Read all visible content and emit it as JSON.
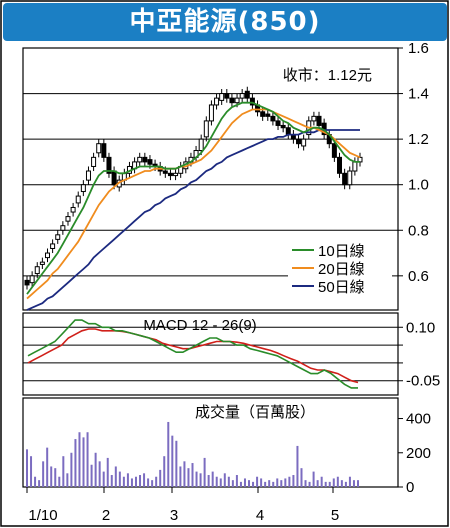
{
  "title": "中亞能源(850)",
  "price_label": "收市：1.12元",
  "colors": {
    "title_bg": "#1b7fc4",
    "up": "#ffffff",
    "down": "#000000",
    "ma10": "#2a8c2a",
    "ma20": "#f08c1e",
    "ma50": "#1c2a80",
    "macd": "#2a8c2a",
    "signal": "#d0201a",
    "volume": "#7b6cc0"
  },
  "x_labels": [
    "1/10",
    "2",
    "3",
    "4",
    "5"
  ],
  "chart_data": [
    {
      "type": "candlestick",
      "title": "",
      "ylim": [
        0.45,
        1.6
      ],
      "y_ticks": [
        "1.6",
        "1.4",
        "1.2",
        "1.0",
        "0.8",
        "0.6"
      ],
      "y_tick_values": [
        1.6,
        1.4,
        1.2,
        1.0,
        0.8,
        0.6
      ],
      "legend": {
        "position": "bottom-right",
        "entries": [
          "10日線",
          "20日線",
          "50日線"
        ]
      },
      "close": [
        0.56,
        0.6,
        0.64,
        0.66,
        0.7,
        0.74,
        0.78,
        0.82,
        0.86,
        0.9,
        0.95,
        1.0,
        1.06,
        1.12,
        1.18,
        1.12,
        1.05,
        1.0,
        1.02,
        1.05,
        1.08,
        1.1,
        1.12,
        1.1,
        1.09,
        1.08,
        1.06,
        1.05,
        1.04,
        1.05,
        1.08,
        1.1,
        1.12,
        1.15,
        1.2,
        1.28,
        1.35,
        1.38,
        1.4,
        1.38,
        1.36,
        1.38,
        1.4,
        1.38,
        1.35,
        1.32,
        1.3,
        1.3,
        1.28,
        1.26,
        1.25,
        1.22,
        1.2,
        1.18,
        1.2,
        1.28,
        1.3,
        1.26,
        1.22,
        1.18,
        1.12,
        1.05,
        1.0,
        1.06,
        1.1,
        1.12
      ],
      "open": [
        0.58,
        0.57,
        0.61,
        0.65,
        0.68,
        0.72,
        0.76,
        0.8,
        0.84,
        0.88,
        0.92,
        0.97,
        1.02,
        1.08,
        1.14,
        1.18,
        1.12,
        1.06,
        0.99,
        1.02,
        1.05,
        1.07,
        1.1,
        1.12,
        1.11,
        1.09,
        1.08,
        1.06,
        1.05,
        1.04,
        1.05,
        1.07,
        1.1,
        1.12,
        1.15,
        1.21,
        1.28,
        1.35,
        1.37,
        1.4,
        1.38,
        1.36,
        1.38,
        1.41,
        1.38,
        1.35,
        1.32,
        1.31,
        1.3,
        1.28,
        1.26,
        1.25,
        1.22,
        1.2,
        1.17,
        1.22,
        1.28,
        1.3,
        1.27,
        1.22,
        1.18,
        1.12,
        1.05,
        1.0,
        1.06,
        1.1
      ],
      "ma10": [
        0.52,
        0.55,
        0.58,
        0.61,
        0.64,
        0.67,
        0.7,
        0.74,
        0.78,
        0.82,
        0.86,
        0.9,
        0.95,
        1.0,
        1.04,
        1.06,
        1.06,
        1.06,
        1.05,
        1.05,
        1.06,
        1.07,
        1.08,
        1.08,
        1.08,
        1.08,
        1.08,
        1.07,
        1.07,
        1.07,
        1.08,
        1.09,
        1.1,
        1.12,
        1.14,
        1.17,
        1.21,
        1.25,
        1.29,
        1.32,
        1.34,
        1.35,
        1.36,
        1.36,
        1.36,
        1.35,
        1.34,
        1.33,
        1.32,
        1.3,
        1.28,
        1.27,
        1.25,
        1.24,
        1.23,
        1.24,
        1.25,
        1.25,
        1.24,
        1.22,
        1.19,
        1.16,
        1.13,
        1.11,
        1.1,
        1.1
      ],
      "ma20": [
        0.5,
        0.52,
        0.54,
        0.56,
        0.58,
        0.61,
        0.63,
        0.66,
        0.69,
        0.72,
        0.75,
        0.79,
        0.83,
        0.87,
        0.91,
        0.94,
        0.97,
        0.99,
        1.01,
        1.02,
        1.03,
        1.04,
        1.05,
        1.06,
        1.06,
        1.07,
        1.07,
        1.07,
        1.07,
        1.07,
        1.08,
        1.08,
        1.09,
        1.1,
        1.11,
        1.13,
        1.15,
        1.18,
        1.21,
        1.24,
        1.27,
        1.29,
        1.31,
        1.32,
        1.33,
        1.33,
        1.33,
        1.33,
        1.32,
        1.31,
        1.3,
        1.29,
        1.28,
        1.27,
        1.26,
        1.25,
        1.25,
        1.24,
        1.23,
        1.22,
        1.2,
        1.18,
        1.16,
        1.14,
        1.13,
        1.12
      ],
      "ma50": [
        0.45,
        0.46,
        0.47,
        0.48,
        0.5,
        0.51,
        0.53,
        0.55,
        0.57,
        0.59,
        0.61,
        0.63,
        0.65,
        0.68,
        0.7,
        0.72,
        0.74,
        0.76,
        0.78,
        0.8,
        0.82,
        0.84,
        0.86,
        0.88,
        0.89,
        0.91,
        0.92,
        0.94,
        0.95,
        0.96,
        0.98,
        0.99,
        1.01,
        1.02,
        1.04,
        1.06,
        1.07,
        1.09,
        1.1,
        1.12,
        1.13,
        1.14,
        1.15,
        1.16,
        1.17,
        1.18,
        1.19,
        1.2,
        1.2,
        1.21,
        1.21,
        1.22,
        1.22,
        1.22,
        1.23,
        1.23,
        1.23,
        1.24,
        1.24,
        1.24,
        1.24,
        1.24,
        1.24,
        1.24,
        1.24,
        1.24
      ]
    },
    {
      "type": "line",
      "title": "MACD 12 - 26(9)",
      "ylim": [
        -0.09,
        0.14
      ],
      "y_ticks": [
        "0.10",
        "-0.05"
      ],
      "y_tick_values": [
        0.1,
        -0.05
      ],
      "gridlines": [
        0.1,
        0.05,
        0,
        -0.05
      ],
      "series": [
        {
          "role": "macd",
          "values": [
            0.02,
            0.03,
            0.04,
            0.05,
            0.06,
            0.08,
            0.1,
            0.12,
            0.12,
            0.11,
            0.11,
            0.1,
            0.1,
            0.09,
            0.09,
            0.085,
            0.08,
            0.075,
            0.07,
            0.06,
            0.05,
            0.04,
            0.03,
            0.03,
            0.04,
            0.05,
            0.06,
            0.07,
            0.07,
            0.06,
            0.06,
            0.05,
            0.05,
            0.04,
            0.035,
            0.03,
            0.025,
            0.02,
            0.01,
            0.0,
            -0.01,
            -0.02,
            -0.03,
            -0.03,
            -0.02,
            -0.03,
            -0.045,
            -0.06,
            -0.07,
            -0.07
          ]
        },
        {
          "role": "signal",
          "values": [
            0.0,
            0.01,
            0.02,
            0.03,
            0.04,
            0.05,
            0.07,
            0.08,
            0.09,
            0.095,
            0.095,
            0.09,
            0.09,
            0.09,
            0.088,
            0.085,
            0.08,
            0.075,
            0.07,
            0.065,
            0.055,
            0.05,
            0.045,
            0.04,
            0.04,
            0.045,
            0.05,
            0.055,
            0.06,
            0.06,
            0.06,
            0.058,
            0.055,
            0.05,
            0.045,
            0.04,
            0.035,
            0.028,
            0.02,
            0.012,
            0.005,
            -0.005,
            -0.015,
            -0.02,
            -0.02,
            -0.025,
            -0.03,
            -0.04,
            -0.05,
            -0.055
          ]
        }
      ]
    },
    {
      "type": "bar",
      "title": "成交量（百萬股）",
      "ylim": [
        0,
        520
      ],
      "y_ticks": [
        "400",
        "200",
        "0"
      ],
      "y_tick_values": [
        400,
        200,
        0
      ],
      "values": [
        220,
        180,
        60,
        40,
        150,
        230,
        120,
        110,
        60,
        180,
        80,
        200,
        280,
        320,
        290,
        320,
        130,
        200,
        150,
        90,
        170,
        70,
        120,
        90,
        60,
        80,
        50,
        60,
        70,
        80,
        50,
        40,
        60,
        100,
        180,
        380,
        300,
        270,
        120,
        150,
        110,
        140,
        90,
        80,
        170,
        70,
        90,
        60,
        50,
        80,
        60,
        40,
        70,
        30,
        50,
        40,
        30,
        60,
        50,
        30,
        40,
        30,
        50,
        40,
        50,
        60,
        70,
        240,
        110,
        40,
        30,
        90,
        40,
        60,
        30,
        30,
        50,
        60,
        40,
        30,
        60,
        40,
        40
      ]
    }
  ]
}
